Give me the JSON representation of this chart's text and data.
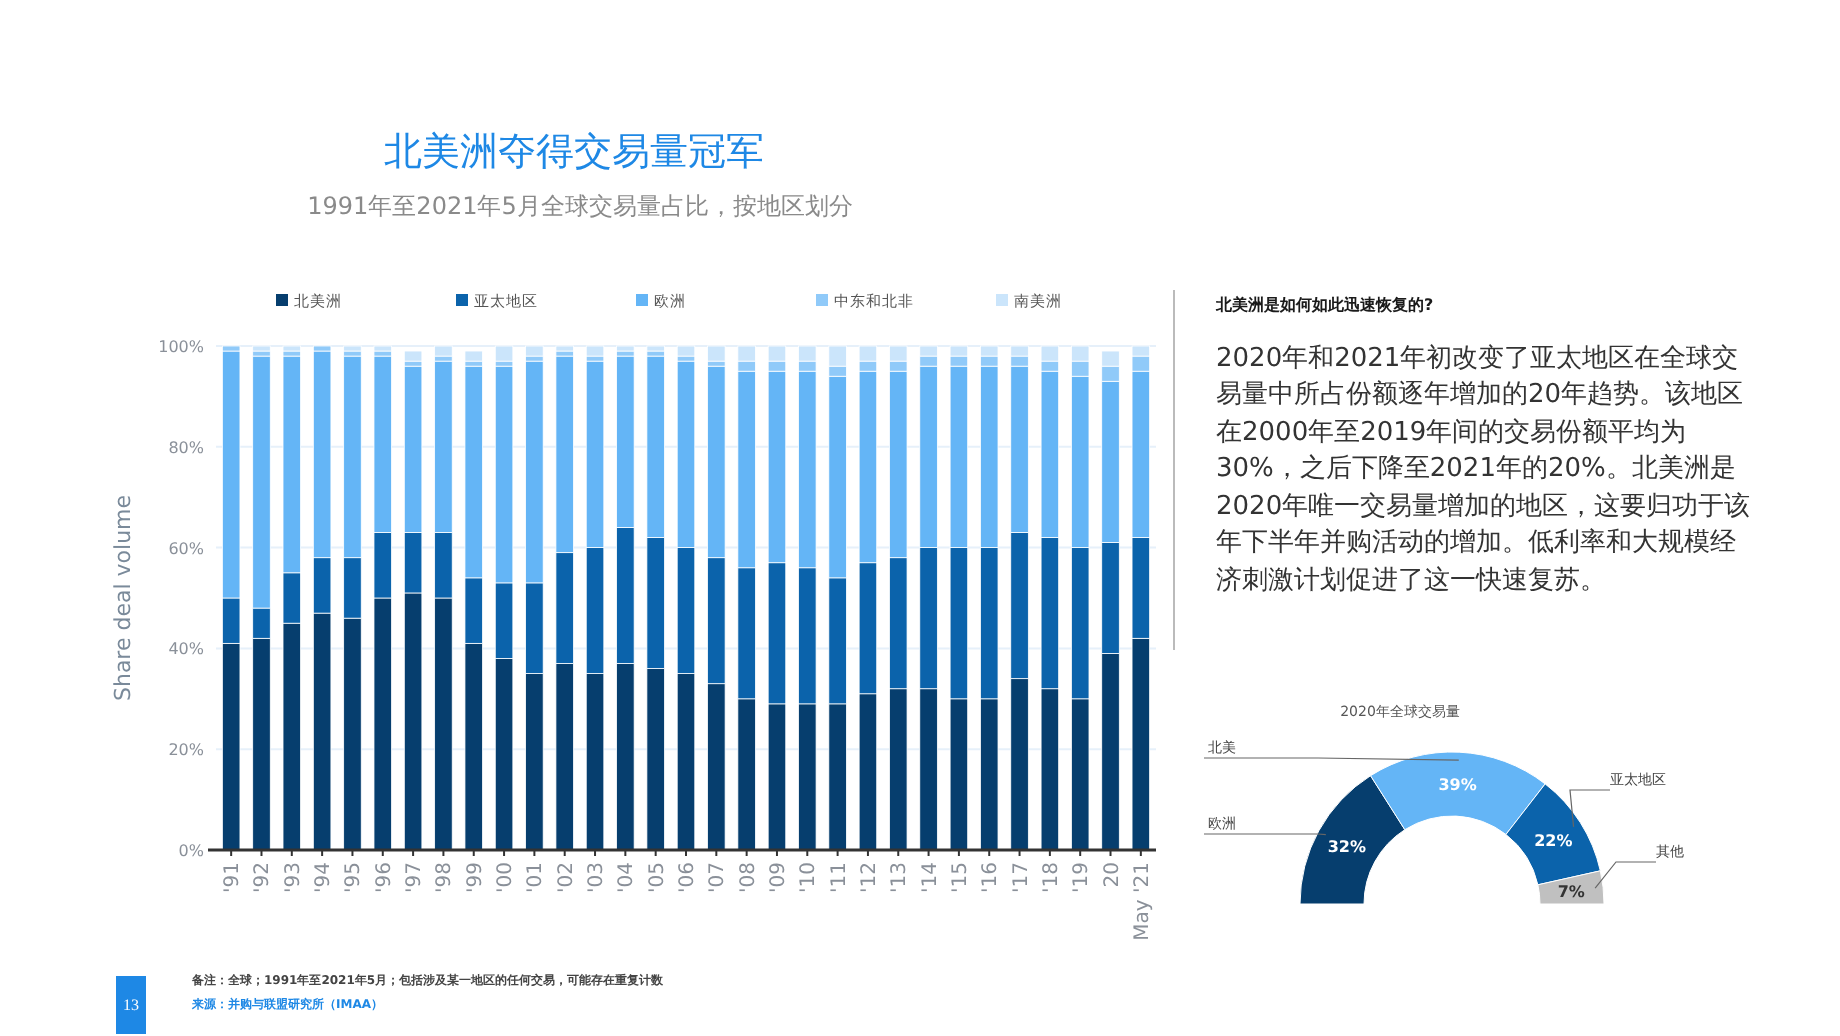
{
  "chart_data": [
    {
      "type": "bar",
      "title": "北美洲夺得交易量冠军",
      "subtitle": "1991年至2021年5月全球交易量占比，按地区划分",
      "ylabel": "Share deal volume",
      "stacked": true,
      "legend": "top",
      "grid": "y",
      "categories": [
        "'91",
        "'92",
        "'93",
        "'94",
        "'95",
        "'96",
        "'97",
        "'98",
        "'99",
        "'00",
        "'01",
        "'02",
        "'03",
        "'04",
        "'05",
        "'06",
        "'07",
        "'08",
        "'09",
        "'10",
        "'11",
        "'12",
        "'13",
        "'14",
        "'15",
        "'16",
        "'17",
        "'18",
        "'19",
        "20",
        "May '21"
      ],
      "series": [
        {
          "name": "北美洲",
          "color": "#063e6e",
          "values": [
            41,
            42,
            45,
            47,
            46,
            50,
            51,
            50,
            41,
            38,
            35,
            37,
            35,
            37,
            36,
            35,
            33,
            30,
            29,
            29,
            29,
            31,
            32,
            32,
            30,
            30,
            34,
            32,
            30,
            39,
            42
          ]
        },
        {
          "name": "亚太地区",
          "color": "#0b63ab",
          "values": [
            9,
            6,
            10,
            11,
            12,
            13,
            12,
            13,
            13,
            15,
            18,
            22,
            25,
            27,
            26,
            25,
            25,
            26,
            28,
            27,
            25,
            26,
            26,
            28,
            30,
            30,
            29,
            30,
            30,
            22,
            20
          ]
        },
        {
          "name": "欧洲",
          "color": "#64b5f6",
          "values": [
            49,
            50,
            43,
            41,
            40,
            35,
            33,
            34,
            42,
            43,
            44,
            39,
            37,
            34,
            36,
            37,
            38,
            39,
            38,
            39,
            40,
            38,
            37,
            36,
            36,
            36,
            33,
            33,
            34,
            32,
            33
          ]
        },
        {
          "name": "中东和北非",
          "color": "#90caf9",
          "values": [
            1,
            1,
            1,
            1,
            1,
            1,
            1,
            1,
            1,
            1,
            1,
            1,
            1,
            1,
            1,
            1,
            1,
            2,
            2,
            2,
            2,
            2,
            2,
            2,
            2,
            2,
            2,
            2,
            3,
            3,
            3
          ]
        },
        {
          "name": "南美洲",
          "color": "#cbe5fb",
          "values": [
            null,
            1,
            1,
            null,
            1,
            1,
            2,
            2,
            2,
            3,
            2,
            1,
            2,
            1,
            1,
            2,
            3,
            3,
            3,
            3,
            4,
            3,
            3,
            2,
            2,
            2,
            2,
            3,
            3,
            3,
            2
          ]
        }
      ],
      "ylim": [
        0,
        100
      ],
      "yticks": [
        {
          "value": 0,
          "label": "0%"
        },
        {
          "value": 20,
          "label": "20%"
        },
        {
          "value": 40,
          "label": "40%"
        },
        {
          "value": 60,
          "label": "60%"
        },
        {
          "value": 80,
          "label": "80%"
        },
        {
          "value": 100,
          "label": "100%"
        }
      ],
      "annotations": [
        "北美洲是如何如此迅速恢复的?",
        "2020年和2021年初改变了亚太地区在全球交易量中所占份额逐年增加的20年趋势。该地区在2000年至2019年间的交易份额平均为30%，之后下降至2021年的20%。北美洲是2020年唯一交易量增加的地区，这要归功于该年下半年并购活动的增加。低利率和大规模经济刺激计划促进了这一快速复苏。",
        "备注：全球；1991年至2021年5月；包括涉及某一地区的任何交易，可能存在重复计数",
        "来源：并购与联盟研究所（IMAA）",
        "13"
      ]
    },
    {
      "type": "donut",
      "title": "2020年全球交易量",
      "categories": [
        "欧洲",
        "北美",
        "亚太地区",
        "其他"
      ],
      "values": [
        32,
        39,
        22,
        7
      ],
      "colors": [
        "#063e6e",
        "#64b5f6",
        "#0b63ab",
        "#c0c0c0"
      ],
      "value_labels": [
        "32%",
        "39%",
        "22%",
        "7%"
      ]
    }
  ]
}
